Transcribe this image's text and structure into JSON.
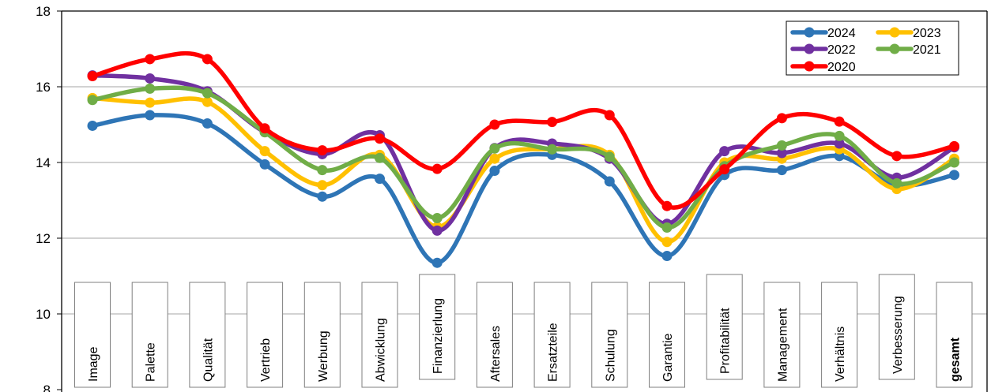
{
  "chart_data": {
    "type": "line",
    "title": "",
    "xlabel": "",
    "ylabel": "",
    "ylim": [
      8,
      18
    ],
    "yticks": [
      "8",
      "10",
      "12",
      "14",
      "16",
      "18"
    ],
    "grid": "horizontal",
    "legend_position": "top-right",
    "categories": [
      "Image",
      "Palette",
      "Qualität",
      "Vertrieb",
      "Werbung",
      "Abwicklung",
      "Finanzierlung",
      "Aftersales",
      "Ersatzteile",
      "Schulung",
      "Garantie",
      "Profitabilität",
      "Management",
      "Verhältnis",
      "Verbesserung",
      "gesamt"
    ],
    "bold_category": "gesamt",
    "series": [
      {
        "name": "2024",
        "color": "#2e75b6",
        "values": [
          14.97,
          15.25,
          15.03,
          13.95,
          13.1,
          13.57,
          11.35,
          13.78,
          14.2,
          13.5,
          11.53,
          13.67,
          13.8,
          14.17,
          13.4,
          13.67
        ]
      },
      {
        "name": "2023",
        "color": "#ffc000",
        "values": [
          15.7,
          15.58,
          15.6,
          14.3,
          13.4,
          14.2,
          12.3,
          14.1,
          14.35,
          14.2,
          11.9,
          14.0,
          14.1,
          14.35,
          13.3,
          14.1
        ]
      },
      {
        "name": "2022",
        "color": "#7030a0",
        "values": [
          16.3,
          16.22,
          15.88,
          14.8,
          14.22,
          14.72,
          12.2,
          14.38,
          14.5,
          14.1,
          12.38,
          14.3,
          14.25,
          14.5,
          13.6,
          14.4
        ]
      },
      {
        "name": "2021",
        "color": "#70ad47",
        "values": [
          15.65,
          15.95,
          15.83,
          14.8,
          13.8,
          14.12,
          12.53,
          14.37,
          14.35,
          14.15,
          12.28,
          13.9,
          14.45,
          14.7,
          13.45,
          14.0
        ]
      },
      {
        "name": "2020",
        "color": "#ff0000",
        "values": [
          16.28,
          16.73,
          16.73,
          14.9,
          14.32,
          14.63,
          13.83,
          15.0,
          15.07,
          15.25,
          12.85,
          13.82,
          15.17,
          15.08,
          14.17,
          14.43
        ]
      }
    ]
  }
}
